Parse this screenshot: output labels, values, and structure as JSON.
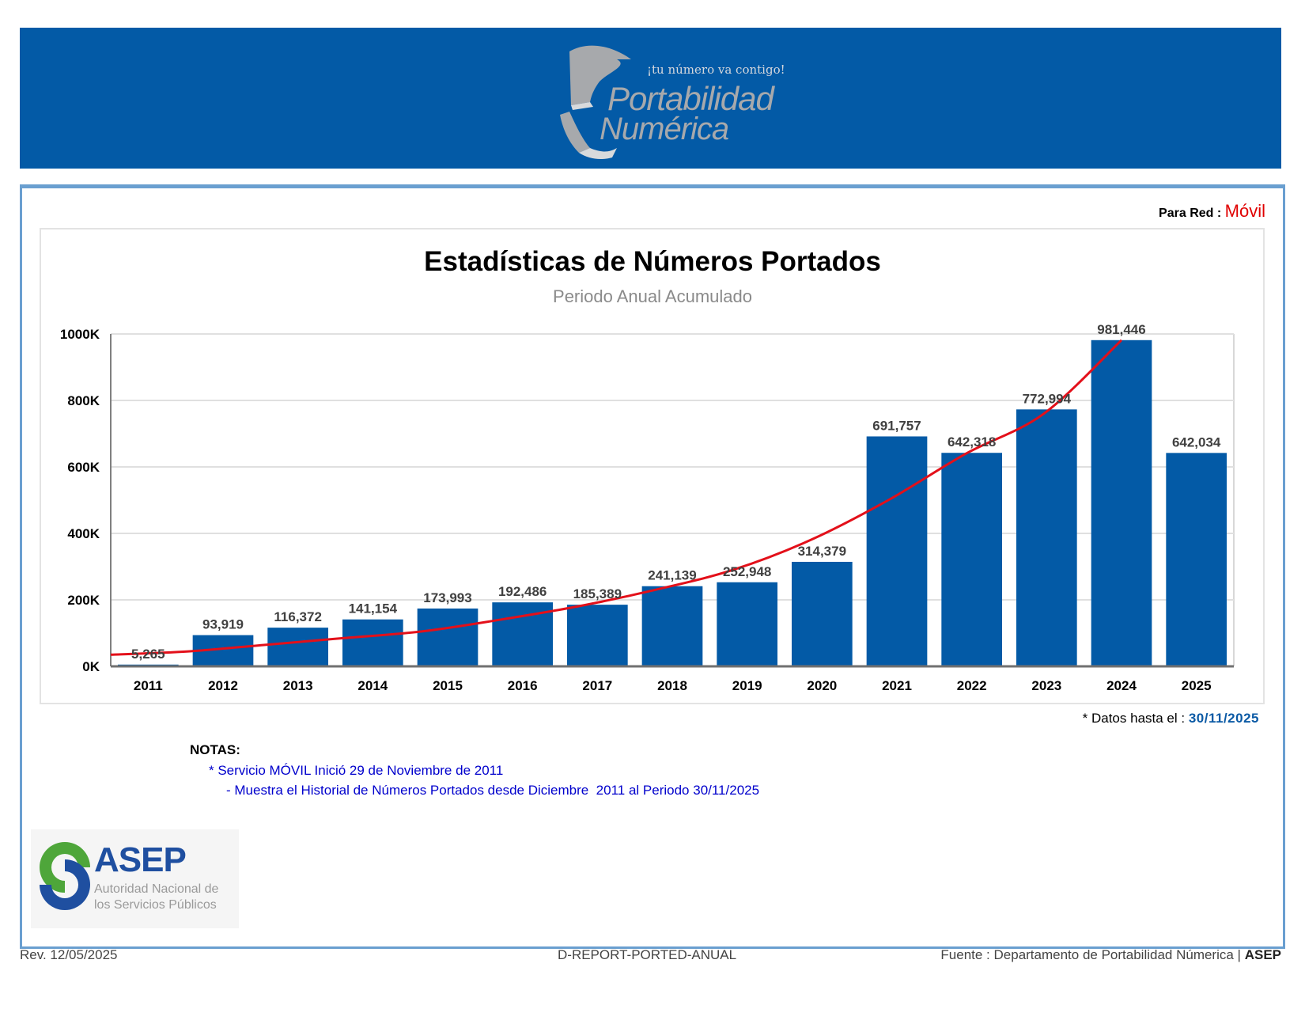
{
  "header": {
    "logo_tagline": "¡tu número va contigo!",
    "logo_line1": "Portabilidad",
    "logo_line2": "Numérica",
    "banner_color": "#035aa6"
  },
  "filter": {
    "label": "Para Red",
    "separator": ":",
    "value": "Móvil"
  },
  "chart_data": {
    "type": "bar",
    "title": "Estadísticas de Números Portados",
    "subtitle": "Periodo Anual Acumulado",
    "xlabel": "",
    "ylabel": "",
    "ylim": [
      0,
      1000000
    ],
    "yticks": [
      0,
      200000,
      400000,
      600000,
      800000,
      1000000
    ],
    "ytick_labels": [
      "0K",
      "200K",
      "400K",
      "600K",
      "800K",
      "1000K"
    ],
    "grid": true,
    "categories": [
      "2011",
      "2012",
      "2013",
      "2014",
      "2015",
      "2016",
      "2017",
      "2018",
      "2019",
      "2020",
      "2021",
      "2022",
      "2023",
      "2024",
      "2025"
    ],
    "values": [
      5265,
      93919,
      116372,
      141154,
      173993,
      192486,
      185389,
      241139,
      252948,
      314379,
      691757,
      642318,
      772994,
      981446,
      642034
    ],
    "value_labels": [
      "5,265",
      "93,919",
      "116,372",
      "141,154",
      "173,993",
      "192,486",
      "185,389",
      "241,139",
      "252,948",
      "314,379",
      "691,757",
      "642,318",
      "772,994",
      "981,446",
      "642,034"
    ],
    "bar_color": "#035aa6",
    "trend": {
      "type": "line",
      "color": "#e3101a",
      "description_values": [
        35000,
        45000,
        65000,
        85000,
        105000,
        140000,
        180000,
        230000,
        290000,
        380000,
        500000,
        640000,
        760000,
        981446
      ]
    }
  },
  "datos": {
    "label": "* Datos hasta el :",
    "date": "30/11/2025"
  },
  "notes": {
    "heading": "NOTAS:",
    "line1": "* Servicio MÓVIL Inició 29 de Noviembre de 2011",
    "line2": "- Muestra el Historial de Números Portados desde Diciembre  2011 al Periodo 30/11/2025"
  },
  "asep_logo": {
    "name": "ASEP",
    "subtitle_line1": "Autoridad Nacional de",
    "subtitle_line2": "los Servicios Públicos"
  },
  "footer": {
    "revision": "Rev. 12/05/2025",
    "report_code": "D-REPORT-PORTED-ANUAL",
    "source": "Fuente : Departamento de Portabilidad Númerica |",
    "source_org": "ASEP"
  }
}
